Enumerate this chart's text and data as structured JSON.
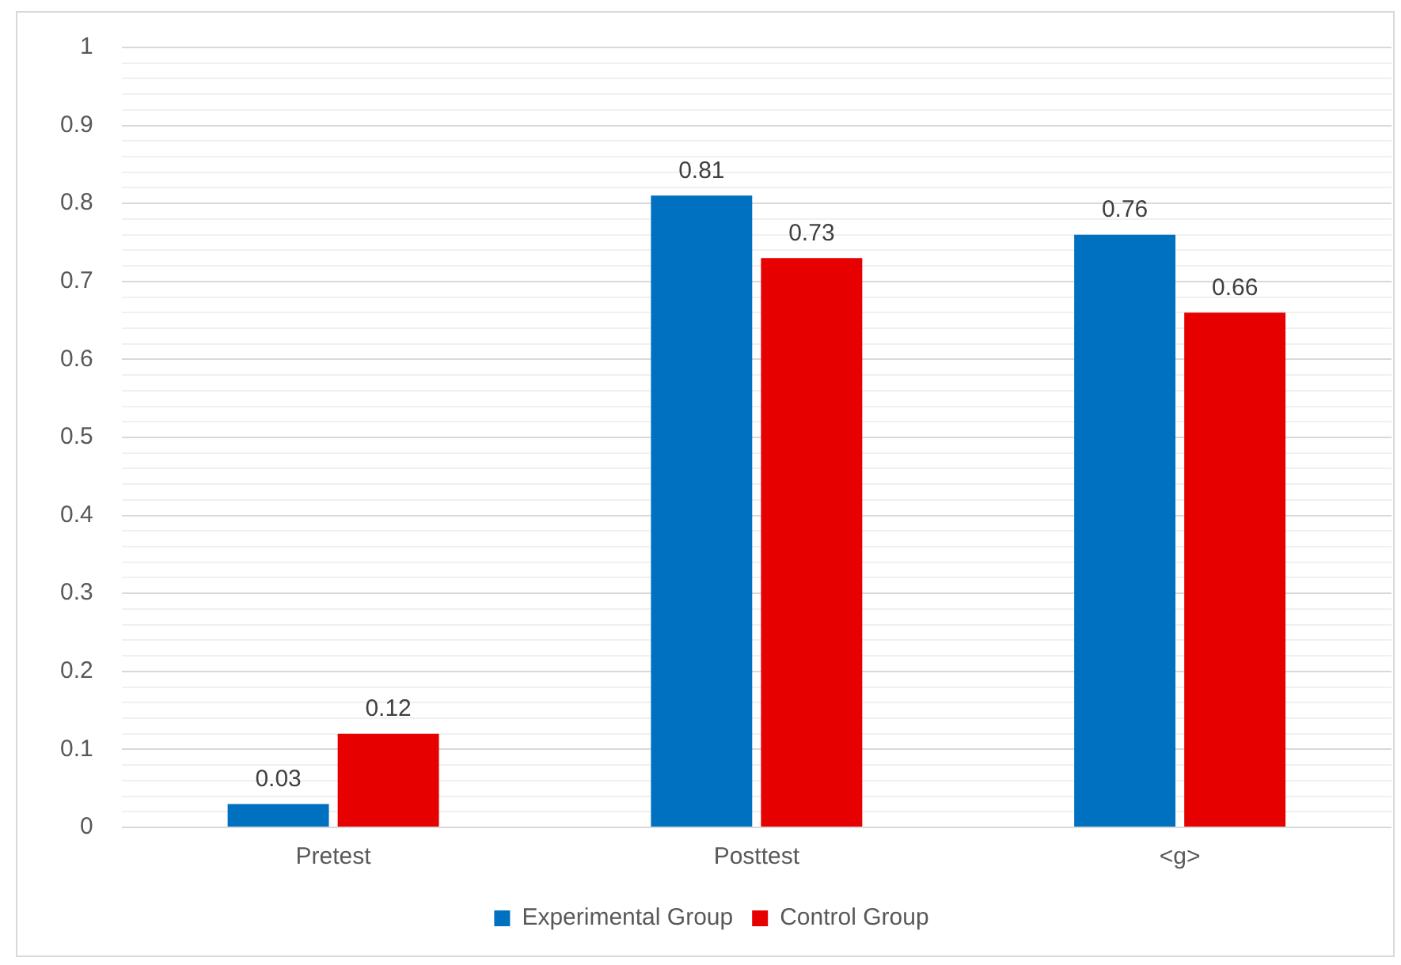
{
  "chart_data": {
    "type": "bar",
    "categories": [
      "Pretest",
      "Posttest",
      "<g>"
    ],
    "series": [
      {
        "name": "Experimental Group",
        "color": "#0070c0",
        "values": [
          0.03,
          0.81,
          0.76
        ]
      },
      {
        "name": "Control Group",
        "color": "#e60000",
        "values": [
          0.12,
          0.73,
          0.66
        ]
      }
    ],
    "ylim": [
      0,
      1
    ],
    "yticks": [
      0,
      {
        "value": 0.02,
        "label": null
      },
      {
        "value": 0.04,
        "label": null
      },
      {
        "value": 0.06,
        "label": null
      },
      {
        "value": 0.08,
        "label": null
      },
      0.1,
      {
        "value": 0.12,
        "label": null
      },
      {
        "value": 0.14,
        "label": null
      },
      {
        "value": 0.16,
        "label": null
      },
      {
        "value": 0.18,
        "label": null
      },
      0.2,
      {
        "value": 0.22,
        "label": null
      },
      {
        "value": 0.24,
        "label": null
      },
      {
        "value": 0.26,
        "label": null
      },
      {
        "value": 0.28,
        "label": null
      },
      0.3,
      {
        "value": 0.32,
        "label": null
      },
      {
        "value": 0.34,
        "label": null
      },
      {
        "value": 0.36,
        "label": null
      },
      {
        "value": 0.38,
        "label": null
      },
      0.4,
      {
        "value": 0.42,
        "label": null
      },
      {
        "value": 0.44,
        "label": null
      },
      {
        "value": 0.46,
        "label": null
      },
      {
        "value": 0.48,
        "label": null
      },
      0.5,
      {
        "value": 0.52,
        "label": null
      },
      {
        "value": 0.54,
        "label": null
      },
      {
        "value": 0.56,
        "label": null
      },
      {
        "value": 0.58,
        "label": null
      },
      0.6,
      {
        "value": 0.62,
        "label": null
      },
      {
        "value": 0.64,
        "label": null
      },
      {
        "value": 0.66,
        "label": null
      },
      {
        "value": 0.68,
        "label": null
      },
      0.7,
      {
        "value": 0.72,
        "label": null
      },
      {
        "value": 0.74,
        "label": null
      },
      {
        "value": 0.76,
        "label": null
      },
      {
        "value": 0.78,
        "label": null
      },
      0.8,
      {
        "value": 0.82,
        "label": null
      },
      {
        "value": 0.84,
        "label": null
      },
      {
        "value": 0.86,
        "label": null
      },
      {
        "value": 0.88,
        "label": null
      },
      0.9,
      {
        "value": 0.92,
        "label": null
      },
      {
        "value": 0.94,
        "label": null
      },
      {
        "value": 0.96,
        "label": null
      },
      {
        "value": 0.98,
        "label": null
      },
      1
    ],
    "grid": "y",
    "legend": "bottom",
    "data_labels": true
  }
}
